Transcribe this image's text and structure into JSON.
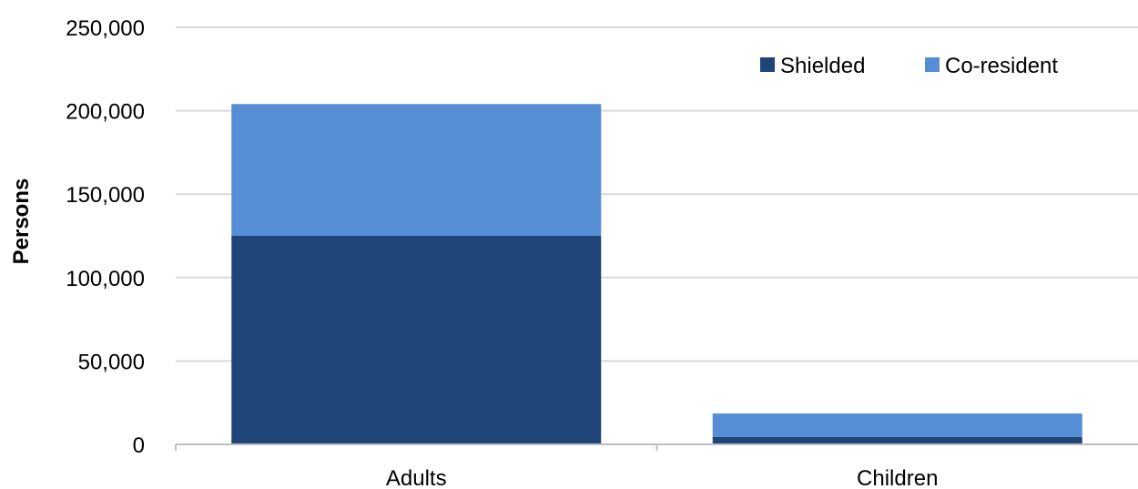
{
  "chart_data": {
    "type": "bar",
    "stacked": true,
    "categories": [
      "Adults",
      "Children"
    ],
    "series": [
      {
        "name": "Shielded",
        "values": [
          125000,
          4500
        ],
        "color": "#1F4579"
      },
      {
        "name": "Co-resident",
        "values": [
          79000,
          14000
        ],
        "color": "#558ED5"
      }
    ],
    "ylabel": "Persons",
    "xlabel": "",
    "title": "",
    "ylim": [
      0,
      250000
    ],
    "yticks": [
      0,
      50000,
      100000,
      150000,
      200000,
      250000
    ],
    "ytick_labels": [
      "0",
      "50,000",
      "100,000",
      "150,000",
      "200,000",
      "250,000"
    ],
    "grid": true,
    "grid_color": "#D9D9D9",
    "legend_position": "top-right"
  }
}
